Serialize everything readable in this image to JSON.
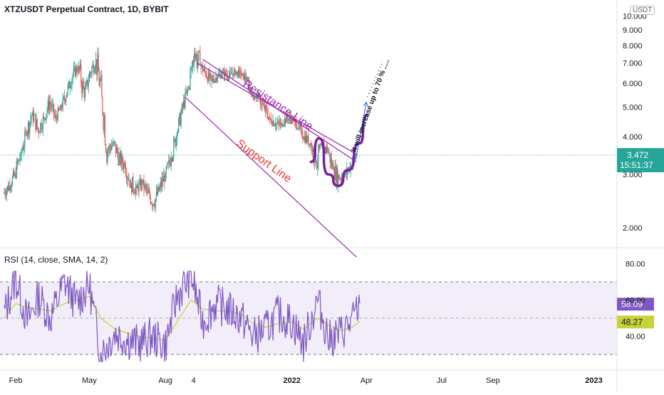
{
  "header": {
    "title": "XTZUSDT Perpetual Contract, 1D, BYBIT",
    "unit": "USDT"
  },
  "price_axis": {
    "ticks": [
      "2.000",
      "3.000",
      "4.000",
      "5.000",
      "6.000",
      "7.000",
      "8.000",
      "9.000",
      "10.000"
    ],
    "current_price": "3.472",
    "countdown": "15:51:37"
  },
  "rsi": {
    "label": "RSI (14, close, SMA, 14, 2)",
    "ticks": [
      "40.00",
      "60.00",
      "80.00"
    ],
    "rsi_value": "58.09",
    "sma_value": "48.27"
  },
  "time_axis": {
    "labels": [
      "Feb",
      "May",
      "Aug",
      "4",
      "2022",
      "Apr",
      "Jul",
      "Sep",
      "2023"
    ]
  },
  "annotations": {
    "resistance": "Resistance Line",
    "support": "Support Line",
    "projection": "It will increase up to 70 % ....."
  },
  "colors": {
    "up": "#26a69a",
    "down": "#ef5350",
    "rsi_line": "#7e57c2",
    "rsi_sma": "#c6d33b",
    "current_price": "#26a69a",
    "channel": "#9c27b0",
    "arrow": "#2962ff"
  },
  "chart_data": [
    {
      "type": "candlestick",
      "title": "XTZUSDT Perpetual Contract, 1D, BYBIT",
      "yscale": "log",
      "ylim": [
        1.7,
        10.3
      ],
      "x": [
        "2021-01-18",
        "2021-01-25",
        "2021-02-01",
        "2021-02-08",
        "2021-02-15",
        "2021-02-22",
        "2021-03-01",
        "2021-03-08",
        "2021-03-15",
        "2021-03-22",
        "2021-03-29",
        "2021-04-05",
        "2021-04-12",
        "2021-04-19",
        "2021-04-26",
        "2021-05-03",
        "2021-05-10",
        "2021-05-17",
        "2021-05-24",
        "2021-05-31",
        "2021-06-07",
        "2021-06-14",
        "2021-06-21",
        "2021-06-28",
        "2021-07-05",
        "2021-07-12",
        "2021-07-19",
        "2021-07-26",
        "2021-08-02",
        "2021-08-09",
        "2021-08-16",
        "2021-08-23",
        "2021-08-30",
        "2021-09-06",
        "2021-09-13",
        "2021-09-20",
        "2021-09-27",
        "2021-10-04",
        "2021-10-11",
        "2021-10-18",
        "2021-10-25",
        "2021-11-01",
        "2021-11-08",
        "2021-11-15",
        "2021-11-22",
        "2021-11-29",
        "2021-12-06",
        "2021-12-13",
        "2021-12-20",
        "2021-12-27",
        "2022-01-03",
        "2022-01-10",
        "2022-01-17",
        "2022-01-24",
        "2022-01-31",
        "2022-02-07",
        "2022-02-14",
        "2022-02-21",
        "2022-02-28",
        "2022-03-07",
        "2022-03-14"
      ],
      "open": [
        2.6,
        2.75,
        3.0,
        3.5,
        4.1,
        4.8,
        4.2,
        4.6,
        5.2,
        4.6,
        5.0,
        5.6,
        6.4,
        6.8,
        5.4,
        6.5,
        7.2,
        5.4,
        3.6,
        3.8,
        3.4,
        3.2,
        2.8,
        2.7,
        2.8,
        2.6,
        2.4,
        2.7,
        3.0,
        3.4,
        4.1,
        5.0,
        5.8,
        7.5,
        6.9,
        6.4,
        6.1,
        6.3,
        6.5,
        6.3,
        6.6,
        6.4,
        6.2,
        5.5,
        5.4,
        5.0,
        4.6,
        4.4,
        4.4,
        4.6,
        4.5,
        4.3,
        4.0,
        3.8,
        3.3,
        3.7,
        3.6,
        3.1,
        2.9,
        3.0,
        3.2
      ],
      "high": [
        2.9,
        3.2,
        3.8,
        4.3,
        5.1,
        5.3,
        4.9,
        5.5,
        5.6,
        5.1,
        5.8,
        6.6,
        7.4,
        7.6,
        6.6,
        7.8,
        8.4,
        6.2,
        4.1,
        4.2,
        3.7,
        3.5,
        3.1,
        3.0,
        3.0,
        2.8,
        2.8,
        3.2,
        3.6,
        4.3,
        5.2,
        6.1,
        8.2,
        9.2,
        7.1,
        6.8,
        6.8,
        6.9,
        6.9,
        6.8,
        6.9,
        6.7,
        6.3,
        6.0,
        5.6,
        5.2,
        4.8,
        4.7,
        4.9,
        4.9,
        4.7,
        4.5,
        4.2,
        3.9,
        3.8,
        4.5,
        3.9,
        3.4,
        3.1,
        3.3,
        3.5
      ],
      "low": [
        2.4,
        2.6,
        2.9,
        3.3,
        3.9,
        4.1,
        3.9,
        4.4,
        4.5,
        4.3,
        4.8,
        5.4,
        6.2,
        5.2,
        5.1,
        6.2,
        5.2,
        3.2,
        3.3,
        3.2,
        3.0,
        2.7,
        2.4,
        2.5,
        2.5,
        2.2,
        2.2,
        2.6,
        2.9,
        3.3,
        4.0,
        4.9,
        5.7,
        6.5,
        6.0,
        5.7,
        6.0,
        6.2,
        6.1,
        6.2,
        6.2,
        6.0,
        5.4,
        5.2,
        4.8,
        4.4,
        4.2,
        4.1,
        4.3,
        4.4,
        4.2,
        3.8,
        3.6,
        3.1,
        2.6,
        3.5,
        3.0,
        2.6,
        2.7,
        2.8,
        3.1
      ],
      "close": [
        2.75,
        3.0,
        3.5,
        4.1,
        4.8,
        4.2,
        4.6,
        5.2,
        4.6,
        5.0,
        5.6,
        6.4,
        6.8,
        5.4,
        6.5,
        7.2,
        5.4,
        3.6,
        3.8,
        3.4,
        3.2,
        2.8,
        2.7,
        2.8,
        2.6,
        2.4,
        2.7,
        3.0,
        3.4,
        4.1,
        5.0,
        5.8,
        7.5,
        6.9,
        6.4,
        6.1,
        6.3,
        6.5,
        6.3,
        6.6,
        6.4,
        6.2,
        5.5,
        5.4,
        5.0,
        4.6,
        4.4,
        4.4,
        4.6,
        4.5,
        4.3,
        4.0,
        3.8,
        3.3,
        3.7,
        3.6,
        3.1,
        2.9,
        3.0,
        3.2,
        3.47
      ],
      "current_price": 3.472,
      "current_price_label": "3.472",
      "countdown": "15:51:37",
      "trendlines": [
        {
          "name": "Resistance Line",
          "from": [
            "2021-09-15",
            7.2
          ],
          "to": [
            "2022-03-20",
            3.3
          ]
        },
        {
          "name": "Support Line",
          "from": [
            "2021-08-25",
            5.4
          ],
          "to": [
            "2022-03-20",
            1.6
          ]
        },
        {
          "name": "Resistance parallel",
          "from": [
            "2021-09-08",
            7.0
          ],
          "to": [
            "2022-03-20",
            3.5
          ]
        }
      ],
      "projection_path": [
        [
          "2022-01-24",
          3.3
        ],
        [
          "2022-02-03",
          3.95
        ],
        [
          "2022-02-14",
          3.0
        ],
        [
          "2022-02-26",
          2.75
        ],
        [
          "2022-03-10",
          3.1
        ],
        [
          "2022-03-24",
          3.8
        ],
        [
          "2022-04-01",
          4.7
        ]
      ],
      "arrow": {
        "from": [
          "2022-03-20",
          3.45
        ],
        "to": [
          "2022-04-01",
          5.2
        ]
      },
      "dotted_line": {
        "from": [
          "2022-04-02",
          5.4
        ],
        "to": [
          "2022-04-21",
          7.1
        ]
      }
    },
    {
      "type": "line",
      "title": "RSI (14, close, SMA, 14, 2)",
      "ylim": [
        24,
        88
      ],
      "bands": [
        30,
        70
      ],
      "midline": 50,
      "x": [
        "2021-01-18",
        "2021-02-01",
        "2021-02-15",
        "2021-03-01",
        "2021-03-15",
        "2021-04-01",
        "2021-04-15",
        "2021-05-01",
        "2021-05-15",
        "2021-06-01",
        "2021-06-15",
        "2021-07-01",
        "2021-07-15",
        "2021-08-01",
        "2021-08-15",
        "2021-09-01",
        "2021-09-15",
        "2021-10-01",
        "2021-10-15",
        "2021-11-01",
        "2021-11-15",
        "2021-12-01",
        "2021-12-15",
        "2022-01-01",
        "2022-01-15",
        "2022-02-01",
        "2022-02-15",
        "2022-03-01",
        "2022-03-15",
        "2022-03-24"
      ],
      "series": [
        {
          "name": "RSI",
          "values": [
            52,
            72,
            48,
            62,
            50,
            70,
            58,
            68,
            30,
            42,
            38,
            36,
            40,
            35,
            62,
            74,
            48,
            58,
            55,
            50,
            40,
            44,
            52,
            48,
            36,
            60,
            38,
            42,
            48,
            58.09
          ]
        },
        {
          "name": "RSI-based MA",
          "values": [
            50,
            58,
            56,
            55,
            54,
            58,
            60,
            62,
            50,
            44,
            42,
            40,
            39,
            38,
            48,
            60,
            55,
            54,
            54,
            52,
            47,
            45,
            47,
            48,
            44,
            50,
            46,
            43,
            45,
            48.27
          ]
        }
      ],
      "rsi_label": "58.09",
      "sma_label": "48.27"
    }
  ]
}
